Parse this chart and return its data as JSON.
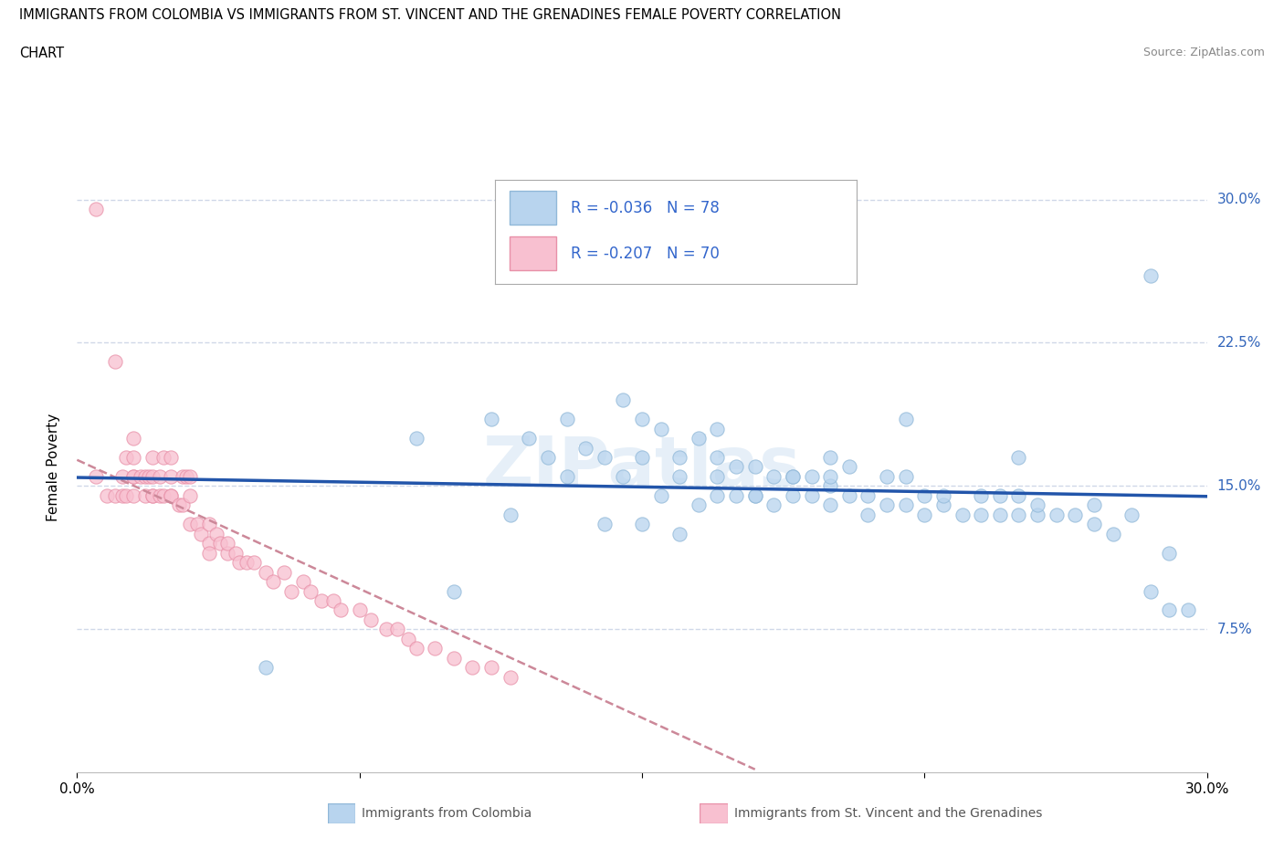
{
  "title_line1": "IMMIGRANTS FROM COLOMBIA VS IMMIGRANTS FROM ST. VINCENT AND THE GRENADINES FEMALE POVERTY CORRELATION",
  "title_line2": "CHART",
  "source": "Source: ZipAtlas.com",
  "ylabel": "Female Poverty",
  "xlim": [
    0.0,
    0.3
  ],
  "ylim": [
    0.0,
    0.32
  ],
  "ytick_positions": [
    0.075,
    0.15,
    0.225,
    0.3
  ],
  "ytick_labels": [
    "7.5%",
    "15.0%",
    "22.5%",
    "30.0%"
  ],
  "grid_color": "#d0d8e8",
  "colombia_color": "#b8d4ee",
  "colombia_edge": "#90b8d8",
  "stv_color": "#f8c0d0",
  "stv_edge": "#e890a8",
  "colombia_R": -0.036,
  "colombia_N": 78,
  "stv_R": -0.207,
  "stv_N": 70,
  "colombia_line_color": "#2255aa",
  "stv_line_color": "#cc8899",
  "legend_text_color": "#3366cc",
  "watermark": "ZIPatlas",
  "colombia_points_x": [
    0.05,
    0.09,
    0.1,
    0.11,
    0.115,
    0.12,
    0.125,
    0.13,
    0.13,
    0.135,
    0.14,
    0.14,
    0.145,
    0.145,
    0.15,
    0.15,
    0.155,
    0.155,
    0.16,
    0.16,
    0.165,
    0.165,
    0.17,
    0.17,
    0.17,
    0.175,
    0.175,
    0.18,
    0.18,
    0.18,
    0.185,
    0.185,
    0.19,
    0.19,
    0.19,
    0.195,
    0.195,
    0.2,
    0.2,
    0.2,
    0.205,
    0.205,
    0.21,
    0.21,
    0.215,
    0.215,
    0.22,
    0.22,
    0.225,
    0.225,
    0.23,
    0.23,
    0.235,
    0.24,
    0.24,
    0.245,
    0.245,
    0.25,
    0.25,
    0.255,
    0.255,
    0.26,
    0.265,
    0.27,
    0.27,
    0.275,
    0.28,
    0.285,
    0.285,
    0.29,
    0.29,
    0.295,
    0.15,
    0.16,
    0.17,
    0.2,
    0.22,
    0.25
  ],
  "colombia_points_y": [
    0.055,
    0.175,
    0.095,
    0.185,
    0.135,
    0.175,
    0.165,
    0.185,
    0.155,
    0.17,
    0.13,
    0.165,
    0.155,
    0.195,
    0.185,
    0.165,
    0.18,
    0.145,
    0.165,
    0.155,
    0.175,
    0.14,
    0.155,
    0.165,
    0.18,
    0.145,
    0.16,
    0.145,
    0.16,
    0.145,
    0.155,
    0.14,
    0.145,
    0.155,
    0.155,
    0.145,
    0.155,
    0.15,
    0.14,
    0.155,
    0.145,
    0.16,
    0.135,
    0.145,
    0.14,
    0.155,
    0.14,
    0.155,
    0.145,
    0.135,
    0.14,
    0.145,
    0.135,
    0.135,
    0.145,
    0.135,
    0.145,
    0.135,
    0.145,
    0.135,
    0.14,
    0.135,
    0.135,
    0.13,
    0.14,
    0.125,
    0.135,
    0.095,
    0.26,
    0.085,
    0.115,
    0.085,
    0.13,
    0.125,
    0.145,
    0.165,
    0.185,
    0.165
  ],
  "stv_points_x": [
    0.005,
    0.005,
    0.008,
    0.01,
    0.01,
    0.012,
    0.012,
    0.013,
    0.013,
    0.015,
    0.015,
    0.015,
    0.015,
    0.015,
    0.017,
    0.018,
    0.018,
    0.019,
    0.02,
    0.02,
    0.02,
    0.02,
    0.022,
    0.022,
    0.023,
    0.023,
    0.025,
    0.025,
    0.025,
    0.025,
    0.027,
    0.028,
    0.028,
    0.029,
    0.03,
    0.03,
    0.03,
    0.032,
    0.033,
    0.035,
    0.035,
    0.035,
    0.037,
    0.038,
    0.04,
    0.04,
    0.042,
    0.043,
    0.045,
    0.047,
    0.05,
    0.052,
    0.055,
    0.057,
    0.06,
    0.062,
    0.065,
    0.068,
    0.07,
    0.075,
    0.078,
    0.082,
    0.085,
    0.088,
    0.09,
    0.095,
    0.1,
    0.105,
    0.11,
    0.115
  ],
  "stv_points_y": [
    0.155,
    0.295,
    0.145,
    0.145,
    0.215,
    0.145,
    0.155,
    0.165,
    0.145,
    0.145,
    0.155,
    0.155,
    0.165,
    0.175,
    0.155,
    0.155,
    0.145,
    0.155,
    0.145,
    0.145,
    0.155,
    0.165,
    0.145,
    0.155,
    0.145,
    0.165,
    0.145,
    0.155,
    0.145,
    0.165,
    0.14,
    0.14,
    0.155,
    0.155,
    0.13,
    0.145,
    0.155,
    0.13,
    0.125,
    0.13,
    0.12,
    0.115,
    0.125,
    0.12,
    0.115,
    0.12,
    0.115,
    0.11,
    0.11,
    0.11,
    0.105,
    0.1,
    0.105,
    0.095,
    0.1,
    0.095,
    0.09,
    0.09,
    0.085,
    0.085,
    0.08,
    0.075,
    0.075,
    0.07,
    0.065,
    0.065,
    0.06,
    0.055,
    0.055,
    0.05
  ]
}
